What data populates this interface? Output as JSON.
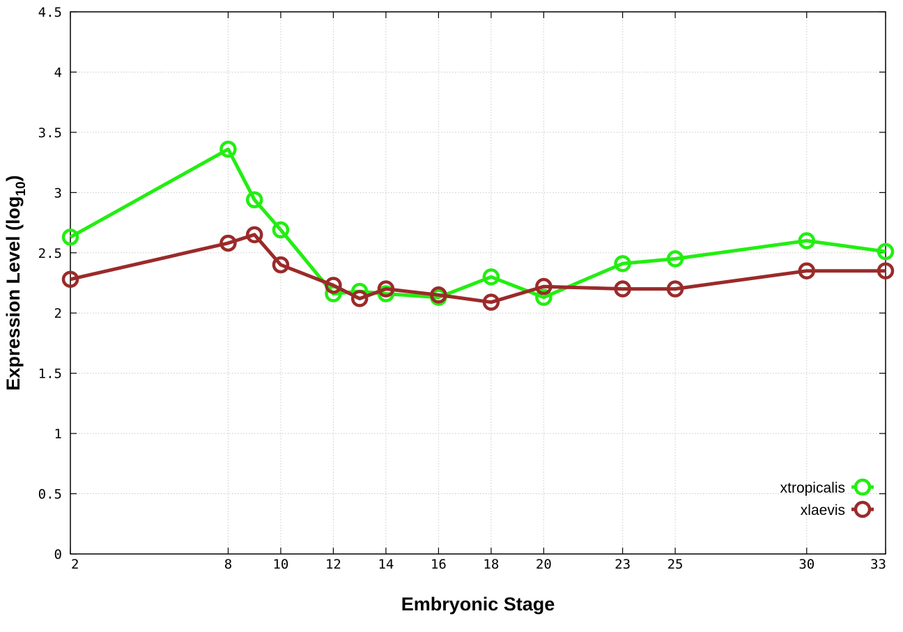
{
  "chart_data": {
    "type": "line",
    "xlabel": "Embryonic Stage",
    "ylabel_main": "Expression Level (log",
    "ylabel_sub": "10",
    "ylabel_close": ")",
    "xlim": [
      2,
      33
    ],
    "ylim": [
      0,
      4.5
    ],
    "x_ticks": [
      2,
      8,
      10,
      12,
      14,
      16,
      18,
      20,
      23,
      25,
      30,
      33
    ],
    "y_ticks": [
      0,
      0.5,
      1,
      1.5,
      2,
      2.5,
      3,
      3.5,
      4,
      4.5
    ],
    "y_tick_labels": [
      "0",
      "0.5",
      "1",
      "1.5",
      "2",
      "2.5",
      "3",
      "3.5",
      "4",
      "4.5"
    ],
    "grid": true,
    "legend_position": "bottom-right",
    "series": [
      {
        "name": "xtropicalis",
        "color": "#22ee11",
        "points": [
          [
            2,
            2.63
          ],
          [
            8,
            3.36
          ],
          [
            9,
            2.94
          ],
          [
            10,
            2.69
          ],
          [
            12,
            2.16
          ],
          [
            13,
            2.18
          ],
          [
            14,
            2.16
          ],
          [
            16,
            2.13
          ],
          [
            18,
            2.3
          ],
          [
            20,
            2.13
          ],
          [
            23,
            2.41
          ],
          [
            25,
            2.45
          ],
          [
            30,
            2.6
          ],
          [
            33,
            2.51
          ]
        ]
      },
      {
        "name": "xlaevis",
        "color": "#9b2a2a",
        "points": [
          [
            2,
            2.28
          ],
          [
            8,
            2.58
          ],
          [
            9,
            2.65
          ],
          [
            10,
            2.4
          ],
          [
            12,
            2.23
          ],
          [
            13,
            2.12
          ],
          [
            14,
            2.2
          ],
          [
            16,
            2.15
          ],
          [
            18,
            2.09
          ],
          [
            20,
            2.22
          ],
          [
            23,
            2.2
          ],
          [
            25,
            2.2
          ],
          [
            30,
            2.35
          ],
          [
            33,
            2.35
          ]
        ]
      }
    ]
  }
}
